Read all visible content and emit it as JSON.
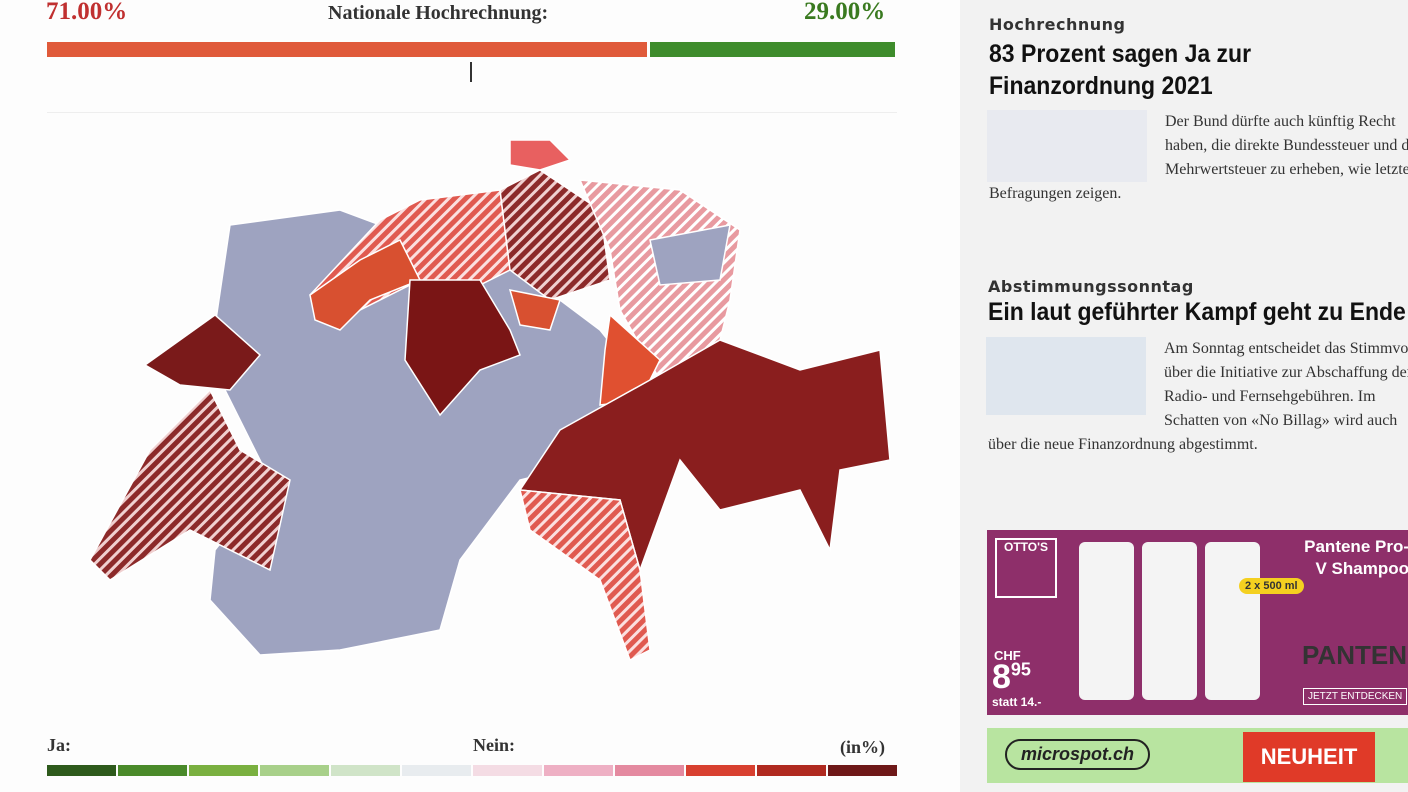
{
  "header": {
    "yes": {
      "value": 71,
      "label": "71.00%"
    },
    "title": "Nationale Hochrechnung:",
    "no": {
      "value": 29,
      "label": "29.00%"
    }
  },
  "legend": {
    "yes_label": "Ja:",
    "no_label": "Nein:",
    "unit": "(in%)"
  },
  "articles": [
    {
      "kicker": "Hochrechnung",
      "title": "83 Prozent sagen Ja zur Finanzordnung 2021",
      "body": "Der Bund dürfte auch künftig Recht haben, die direkte Bundessteuer und die Mehrwertsteuer zu erheben, wie letzte Befragungen zeigen."
    },
    {
      "kicker": "Abstimmungssonntag",
      "title": "Ein laut geführter Kampf geht zu Ende",
      "body": "Am Sonntag entscheidet das Stimmvolk über die Initiative zur Abschaffung der Radio- und Fernsehgebühren. Im Schatten von «No Billag» wird auch über die neue Finanzordnung abgestimmt."
    }
  ],
  "ads": {
    "store": "OTTO'S",
    "product": "Pantene Pro-V Shampoo",
    "currency": "CHF",
    "price_main": "8",
    "price_cents": "95",
    "was": "statt 14.-",
    "pack": "2 x 500 ml",
    "brand": "PANTENE",
    "cta": "JETZT ENTDECKEN",
    "shop": "microspot.ch",
    "badge": "NEUHEIT"
  }
}
